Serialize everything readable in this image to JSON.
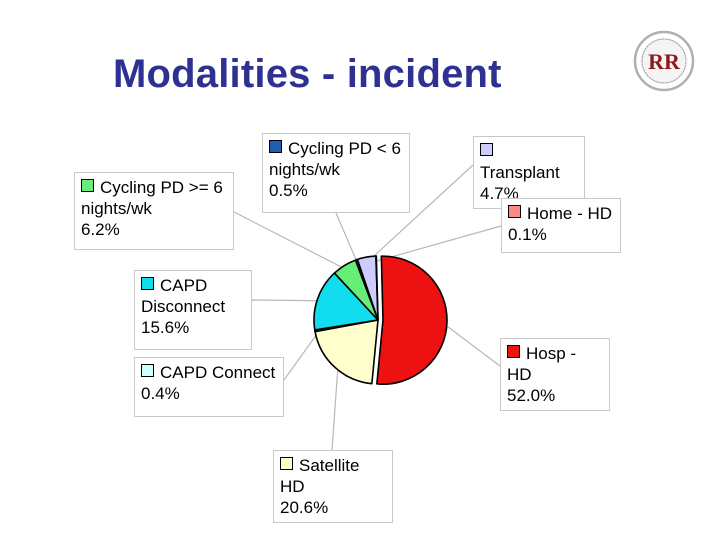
{
  "title": "Modalities - incident",
  "logo": {
    "icon": "rr-registry-seal-icon",
    "text": "RR",
    "colors": [
      "#8b1a1a",
      "#c0c0c0"
    ]
  },
  "chart_data": {
    "type": "pie",
    "title": "",
    "slices": [
      {
        "label": "Hosp - HD",
        "value": 52.0,
        "value_label": "52.0%",
        "color": "#ee1111",
        "lines": [
          "Hosp - HD"
        ]
      },
      {
        "label": "Satellite HD",
        "value": 20.6,
        "value_label": "20.6%",
        "color": "#ffffcc",
        "lines": [
          "Satellite HD"
        ]
      },
      {
        "label": "CAPD Connect",
        "value": 0.4,
        "value_label": "0.4%",
        "color": "#ccffff",
        "lines": [
          "CAPD Connect"
        ]
      },
      {
        "label": "CAPD Disconnect",
        "value": 15.6,
        "value_label": "15.6%",
        "color": "#11ddee",
        "lines": [
          "CAPD",
          "Disconnect"
        ]
      },
      {
        "label": "Cycling PD >= 6 nights/wk",
        "value": 6.2,
        "value_label": "6.2%",
        "color": "#66ee77",
        "lines": [
          "Cycling PD >= 6",
          "nights/wk"
        ]
      },
      {
        "label": "Cycling PD < 6 nights/wk",
        "value": 0.5,
        "value_label": "0.5%",
        "color": "#1a5fb4",
        "lines": [
          "Cycling PD < 6",
          "nights/wk"
        ]
      },
      {
        "label": "Transplant",
        "value": 4.7,
        "value_label": "4.7%",
        "color": "#ccccff",
        "lines": [
          "Transplant"
        ]
      },
      {
        "label": "Home - HD",
        "value": 0.1,
        "value_label": "0.1%",
        "color": "#ff8888",
        "lines": [
          "Home - HD"
        ]
      }
    ],
    "legend": "none",
    "data_labels": "outside"
  }
}
